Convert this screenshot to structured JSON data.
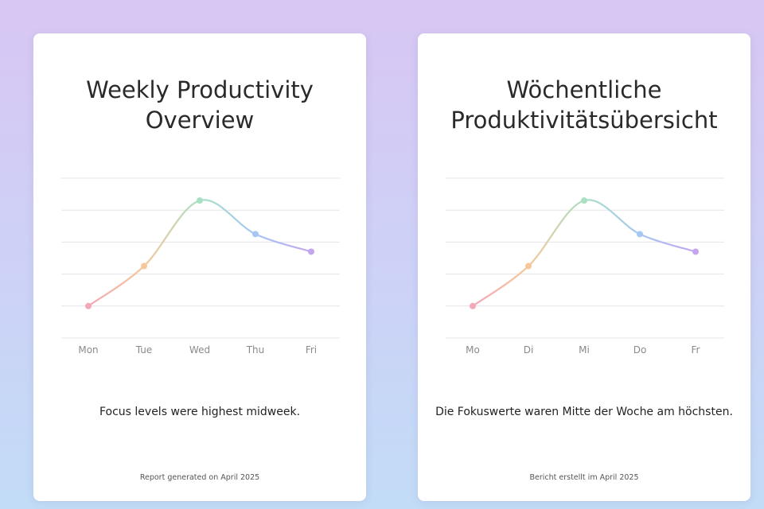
{
  "colors": {
    "mon": "#f2a9b8",
    "tue": "#f6c79a",
    "wed": "#a9e0c4",
    "thu": "#a6c7f4",
    "fri": "#c3a6ec"
  },
  "chart_data": [
    {
      "type": "line",
      "title": "Weekly Productivity Overview",
      "title_lines": [
        "Weekly Productivity",
        "Overview"
      ],
      "categories": [
        "Mon",
        "Tue",
        "Wed",
        "Thu",
        "Fri"
      ],
      "values": [
        1,
        2.25,
        4.3,
        3.25,
        2.7
      ],
      "ylim": [
        0,
        5
      ],
      "grid": true,
      "caption": "Focus levels were highest midweek.",
      "footer": "Report generated on April 2025"
    },
    {
      "type": "line",
      "title": "Wöchentliche Produktivitätsübersicht",
      "title_lines": [
        "Wöchentliche",
        "Produktivitätsübersicht"
      ],
      "categories": [
        "Mo",
        "Di",
        "Mi",
        "Do",
        "Fr"
      ],
      "values": [
        1,
        2.25,
        4.3,
        3.25,
        2.7
      ],
      "ylim": [
        0,
        5
      ],
      "grid": true,
      "caption": "Die Fokuswerte waren Mitte der Woche am höchsten.",
      "footer": "Bericht erstellt im April 2025"
    }
  ]
}
